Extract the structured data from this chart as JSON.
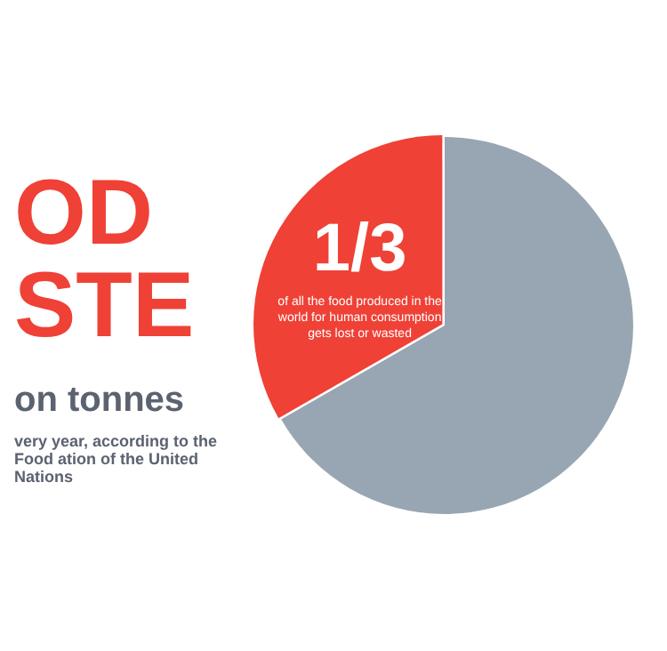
{
  "chart_data": {
    "type": "pie",
    "title": "OD STE",
    "subtitle": "on tonnes",
    "categories": [
      null,
      null
    ],
    "values": [
      66.7,
      33.3
    ],
    "colors": [
      "#98a6b3",
      "#ef4136"
    ],
    "annotations": [
      "1/3",
      "of all the food produced in the world for human consumption gets lost or wasted",
      "very year, according to the Food ation of the United Nations"
    ],
    "legend": false
  }
}
